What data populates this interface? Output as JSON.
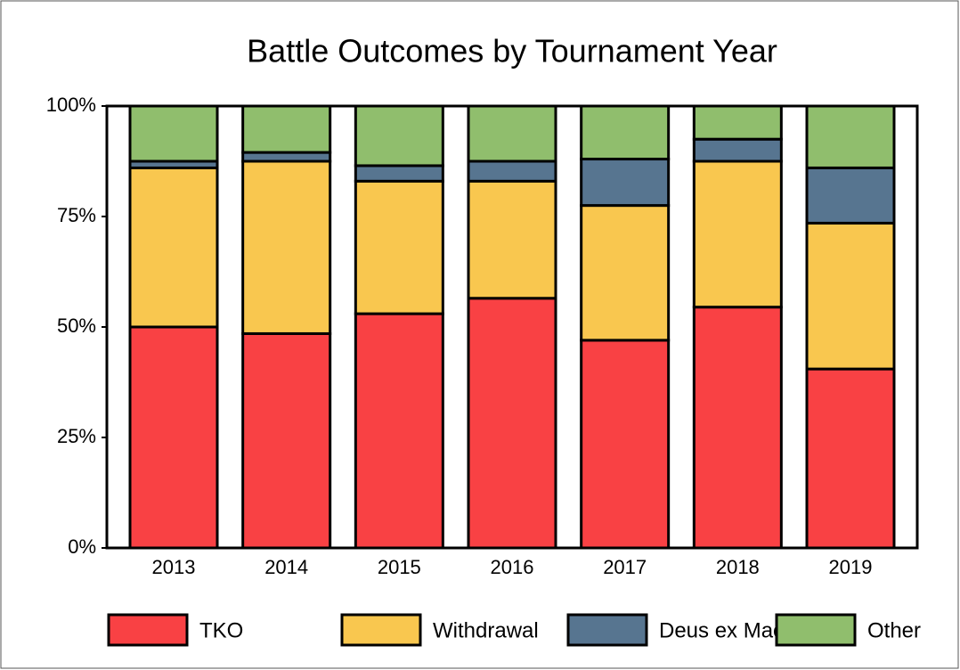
{
  "chart_data": {
    "type": "stacked_bar",
    "title": "Battle Outcomes by Tournament Year",
    "categories": [
      "2013",
      "2014",
      "2015",
      "2016",
      "2017",
      "2018",
      "2019"
    ],
    "series": [
      {
        "name": "TKO",
        "color": "#f94144",
        "values": [
          50,
          48.5,
          53,
          56.5,
          47,
          54.5,
          40.5
        ]
      },
      {
        "name": "Withdrawal",
        "color": "#f9c74f",
        "values": [
          36,
          39,
          30,
          26.5,
          30.5,
          33,
          33
        ]
      },
      {
        "name": "Deus ex Machina",
        "color": "#577590",
        "values": [
          1.5,
          2,
          3.5,
          4.5,
          10.5,
          5,
          12.5
        ]
      },
      {
        "name": "Other",
        "color": "#90be6d",
        "values": [
          12.5,
          10.5,
          13.5,
          12.5,
          12,
          7.5,
          14
        ]
      }
    ],
    "ylim": [
      0,
      100
    ],
    "yticks": [
      {
        "value": 0,
        "label": "0%"
      },
      {
        "value": 25,
        "label": "25%"
      },
      {
        "value": 50,
        "label": "50%"
      },
      {
        "value": 75,
        "label": "75%"
      },
      {
        "value": 100,
        "label": "100%"
      }
    ],
    "legend": "bottom"
  }
}
